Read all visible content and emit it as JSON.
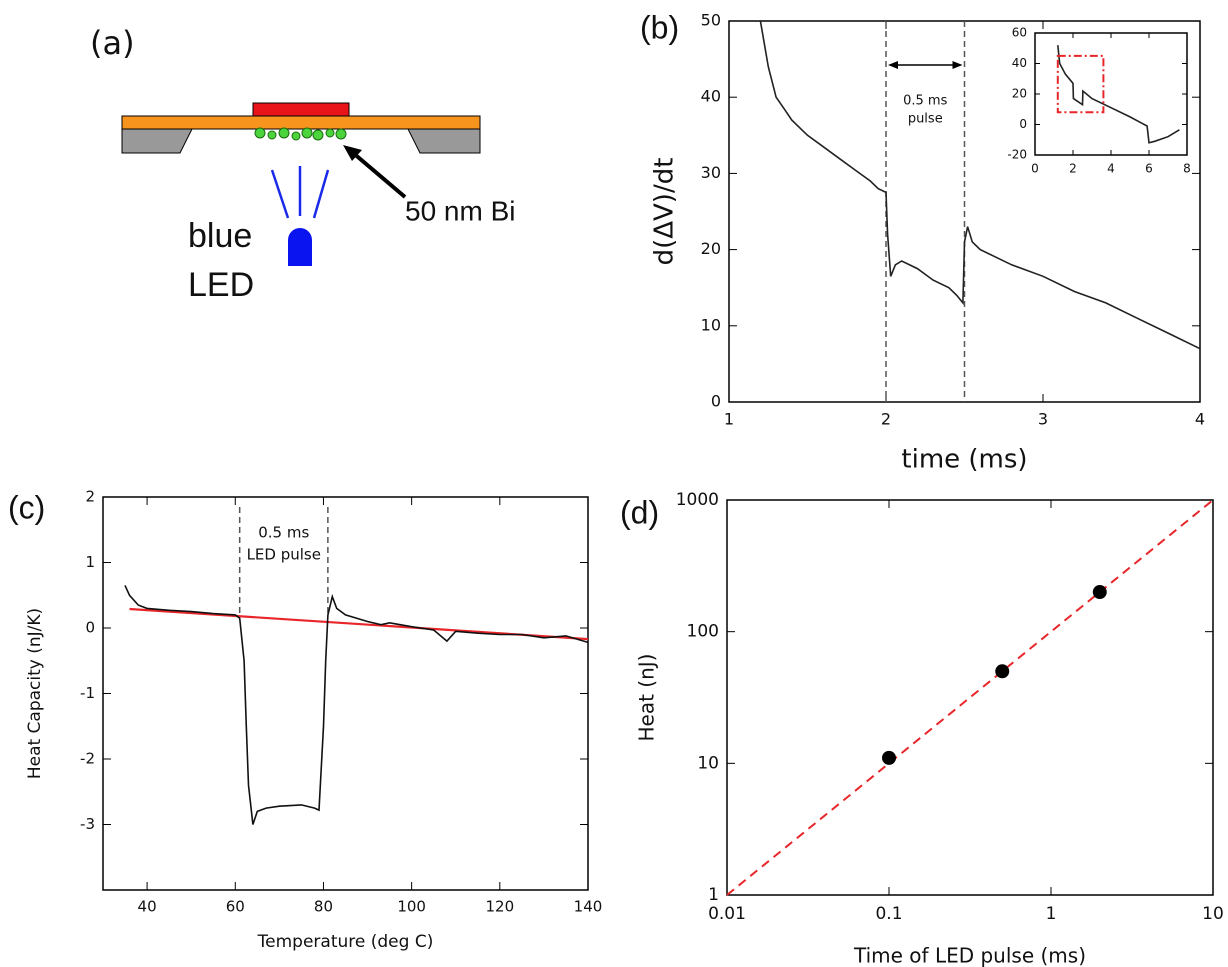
{
  "diagram": {
    "panel": "(a)",
    "material_label": "50 nm Bi",
    "source_label": [
      "blue",
      "LED"
    ]
  },
  "chart_data": [
    {
      "type": "line",
      "panel": "(b)",
      "xlabel": "time (ms)",
      "ylabel": "d(ΔV)/dt",
      "xlim": [
        1,
        4
      ],
      "ylim": [
        0,
        50
      ],
      "xticks": [
        1,
        2,
        3,
        4
      ],
      "yticks": [
        0,
        10,
        20,
        30,
        40,
        50
      ],
      "series": [
        {
          "color": "#222222",
          "x": [
            1.2,
            1.25,
            1.3,
            1.35,
            1.4,
            1.5,
            1.6,
            1.7,
            1.8,
            1.9,
            1.95,
            2.0,
            2.01,
            2.03,
            2.06,
            2.1,
            2.2,
            2.3,
            2.4,
            2.45,
            2.49,
            2.5,
            2.52,
            2.55,
            2.6,
            2.7,
            2.8,
            3.0,
            3.2,
            3.4,
            3.6,
            3.8,
            4.0
          ],
          "values": [
            50,
            44,
            40,
            38.5,
            37,
            35,
            33.5,
            32,
            30.5,
            29,
            28,
            27.5,
            22,
            16.5,
            18,
            18.5,
            17.5,
            16,
            15,
            14,
            13,
            21,
            23,
            21,
            20,
            19,
            18,
            16.5,
            14.5,
            13,
            11,
            9,
            7
          ]
        }
      ],
      "vlines": [
        2,
        2.5
      ],
      "annotations": [
        "0.5 ms",
        "pulse"
      ],
      "inset": {
        "type": "line",
        "xlim": [
          0,
          8
        ],
        "ylim": [
          -20,
          60
        ],
        "xticks": [
          0,
          2,
          4,
          6,
          8
        ],
        "yticks": [
          -20,
          0,
          20,
          40,
          60
        ],
        "series": [
          {
            "color": "#222222",
            "x": [
              1.2,
              1.3,
              1.6,
              2.0,
              2.02,
              2.5,
              2.52,
              3,
              4,
              5,
              5.9,
              6.0,
              6.3,
              7,
              7.6
            ],
            "values": [
              52,
              40,
              33,
              27,
              17,
              13,
              22,
              17,
              11,
              5,
              -1,
              -12,
              -11,
              -8,
              -3.5
            ]
          }
        ],
        "highlight": {
          "color": "#e8262a",
          "x": [
            1.2,
            3.6
          ],
          "y": [
            8,
            45
          ]
        }
      }
    },
    {
      "type": "line",
      "panel": "(c)",
      "xlabel": "Temperature (deg C)",
      "ylabel": "Heat Capacity (nJ/K)",
      "xlim": [
        30,
        140
      ],
      "ylim": [
        -4,
        2
      ],
      "xticks": [
        40,
        60,
        80,
        100,
        120,
        140
      ],
      "yticks": [
        -3,
        -2,
        -1,
        0,
        1,
        2
      ],
      "series": [
        {
          "color": "#111111",
          "x": [
            35,
            36,
            38,
            40,
            45,
            50,
            55,
            60,
            61,
            62,
            62.5,
            63,
            64,
            65,
            67,
            70,
            75,
            78,
            79,
            80,
            80.5,
            81,
            82,
            83,
            85,
            90,
            93,
            95,
            100,
            105,
            108,
            110,
            115,
            120,
            125,
            130,
            135,
            140
          ],
          "values": [
            0.65,
            0.5,
            0.35,
            0.3,
            0.27,
            0.25,
            0.22,
            0.2,
            0.15,
            -0.5,
            -1.5,
            -2.4,
            -3.0,
            -2.8,
            -2.75,
            -2.72,
            -2.7,
            -2.75,
            -2.78,
            -1.5,
            -0.5,
            0.2,
            0.48,
            0.3,
            0.2,
            0.1,
            0.05,
            0.08,
            0.02,
            -0.03,
            -0.2,
            -0.05,
            -0.08,
            -0.1,
            -0.1,
            -0.15,
            -0.12,
            -0.22
          ]
        }
      ],
      "fit": {
        "color": "#e8262a",
        "dash": false,
        "x": [
          36,
          140
        ],
        "values": [
          0.29,
          -0.17
        ]
      },
      "vlines": [
        61,
        81
      ],
      "annotations": [
        "0.5 ms",
        "LED pulse"
      ]
    },
    {
      "type": "scatter",
      "panel": "(d)",
      "xlabel": "Time of LED pulse (ms)",
      "ylabel": "Heat (nJ)",
      "xscale": "log",
      "yscale": "log",
      "xlim": [
        0.01,
        10
      ],
      "ylim": [
        1,
        1000
      ],
      "xticks": [
        0.01,
        0.1,
        1,
        10
      ],
      "yticks": [
        1,
        10,
        100,
        1000
      ],
      "series": [
        {
          "color": "#000000",
          "x": [
            0.1,
            0.5,
            2
          ],
          "values": [
            11,
            50,
            200
          ]
        }
      ],
      "fit": {
        "color": "#e8262a",
        "dash": true,
        "x": [
          0.01,
          10
        ],
        "values": [
          1,
          1000
        ]
      }
    }
  ]
}
